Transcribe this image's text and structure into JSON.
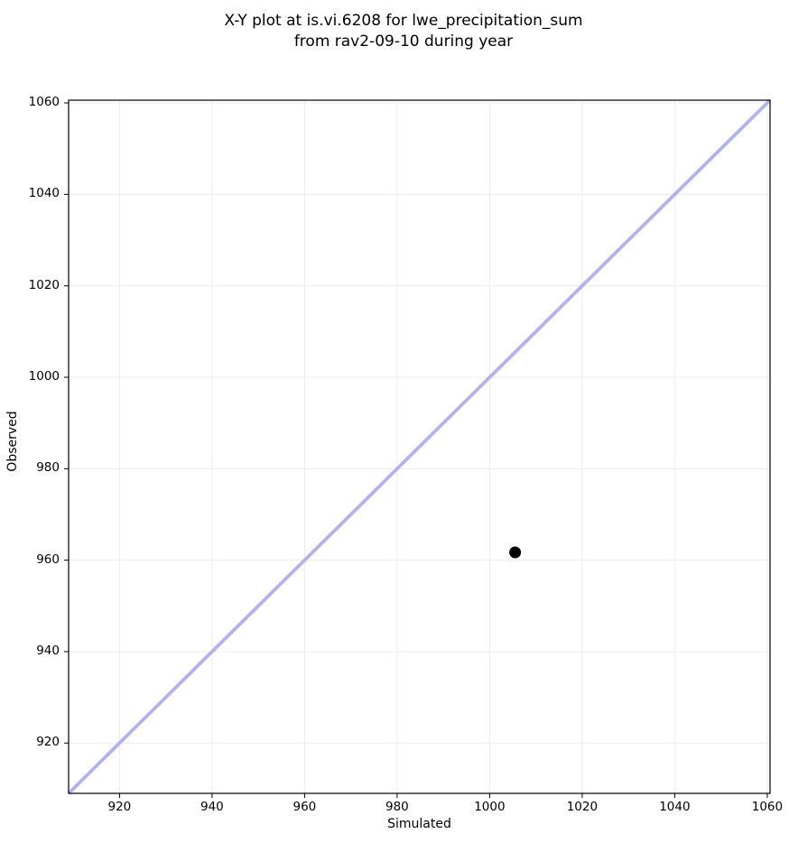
{
  "figure": {
    "title": "X-Y plot at is.vi.6208 for lwe_precipitation_sum\nfrom rav2-09-10 during year"
  },
  "chart_data": {
    "type": "scatter",
    "title": "X-Y plot at is.vi.6208 for lwe_precipitation_sum from rav2-09-10 during year",
    "xlabel": "Simulated",
    "ylabel": "Observed",
    "xlim": [
      909,
      1060.6
    ],
    "ylim": [
      909,
      1060.6
    ],
    "xticks": [
      920,
      940,
      960,
      980,
      1000,
      1020,
      1040,
      1060
    ],
    "yticks": [
      920,
      940,
      960,
      980,
      1000,
      1020,
      1040,
      1060
    ],
    "grid": true,
    "legend": "none",
    "series": [
      {
        "name": "one-to-one-line",
        "type": "line",
        "x": [
          909,
          1060.6
        ],
        "y": [
          909,
          1060.6
        ],
        "color": "#b2b2f2",
        "line_width": 3.8
      },
      {
        "name": "observation-point",
        "type": "scatter",
        "points": [
          {
            "x": 1005.5,
            "y": 961.7
          }
        ],
        "color": "#000000",
        "marker": "circle",
        "marker_radius": 6.5
      }
    ],
    "colors": {
      "grid": "#ececec",
      "axis": "#000000",
      "background": "#ffffff"
    }
  }
}
